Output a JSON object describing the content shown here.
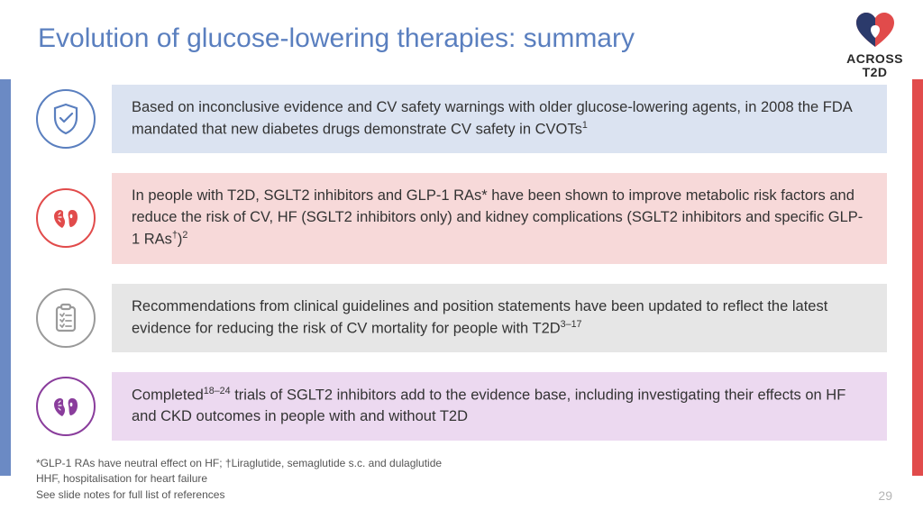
{
  "title": "Evolution of glucose-lowering therapies: summary",
  "logo": {
    "line1": "ACROSS",
    "line2": "T2D"
  },
  "rows": [
    {
      "icon": "shield-check",
      "icon_color": "#5a7fbf",
      "bar_bg": "#dbe3f1",
      "text_pre": "Based on inconclusive evidence and CV safety warnings with older glucose-lowering agents, in 2008 the FDA mandated that new diabetes drugs demonstrate CV safety in CVOTs",
      "sup": "1",
      "text_post": ""
    },
    {
      "icon": "heart-kidney",
      "icon_color": "#e14b4b",
      "bar_bg": "#f7d9d9",
      "text_pre": "In people with T2D, SGLT2 inhibitors and GLP-1 RAs* have been shown to improve metabolic risk factors and reduce the risk of CV, HF (SGLT2 inhibitors only) and kidney complications (SGLT2 inhibitors and specific GLP-1 RAs",
      "sup": "†",
      "text_post": ")",
      "sup2": "2"
    },
    {
      "icon": "clipboard",
      "icon_color": "#9a9a9a",
      "bar_bg": "#e6e6e6",
      "text_pre": "Recommendations from clinical guidelines and position statements have been updated to reflect the latest evidence for reducing the risk of CV mortality for people with T2D",
      "sup": "3–17",
      "text_post": ""
    },
    {
      "icon": "heart-kidney",
      "icon_color": "#8a3d9c",
      "bar_bg": "#ecd9f0",
      "text_pre": "Completed",
      "sup": "18–24",
      "text_post": " trials of SGLT2 inhibitors add to the evidence base, including investigating their effects on HF and CKD outcomes in people with and without T2D"
    }
  ],
  "footnotes": {
    "line1_pre": "*GLP-1 RAs have neutral effect on HF; ",
    "line1_dag": "†",
    "line1_post": "Liraglutide, semaglutide s.c. and dulaglutide",
    "line2": "HHF, hospitalisation for heart failure",
    "line3": "See slide notes for full list of references"
  },
  "pagenum": "29",
  "colors": {
    "title": "#5a7fbf",
    "accent_left": "#6b8ac4",
    "accent_right": "#e14b4b"
  }
}
